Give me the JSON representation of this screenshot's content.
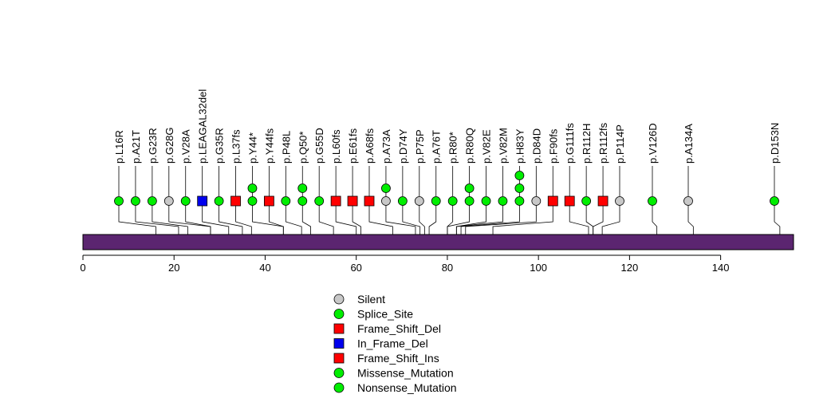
{
  "chart_data": {
    "type": "lollipop",
    "protein_length": 156,
    "x_ticks": [
      0,
      20,
      40,
      60,
      80,
      100,
      120,
      140
    ],
    "x_ticks_text": [
      "0",
      "20",
      "40",
      "60",
      "80",
      "100",
      "120",
      "140"
    ],
    "domain_color": "#5b2570",
    "mutation_types": [
      {
        "name": "Silent",
        "shape": "circle",
        "color": "#c8c8c8"
      },
      {
        "name": "Splice_Site",
        "shape": "circle",
        "color": "#00ee00"
      },
      {
        "name": "Frame_Shift_Del",
        "shape": "square",
        "color": "#ff0000"
      },
      {
        "name": "In_Frame_Del",
        "shape": "square",
        "color": "#0000ee"
      },
      {
        "name": "Frame_Shift_Ins",
        "shape": "square",
        "color": "#ff0000"
      },
      {
        "name": "Missense_Mutation",
        "shape": "circle",
        "color": "#00ee00"
      },
      {
        "name": "Nonsense_Mutation",
        "shape": "circle",
        "color": "#00ee00"
      }
    ],
    "mutations": [
      {
        "label": "p.L16R",
        "pos": 16,
        "type": "Missense_Mutation",
        "count": 1
      },
      {
        "label": "p.A21T",
        "pos": 21,
        "type": "Missense_Mutation",
        "count": 1
      },
      {
        "label": "p.G23R",
        "pos": 23,
        "type": "Missense_Mutation",
        "count": 1
      },
      {
        "label": "p.G28G",
        "pos": 28,
        "type": "Silent",
        "count": 1
      },
      {
        "label": "p.V28A",
        "pos": 28,
        "type": "Missense_Mutation",
        "count": 1
      },
      {
        "label": "p.LEAGAL32del",
        "pos": 32,
        "type": "In_Frame_Del",
        "count": 1
      },
      {
        "label": "p.G35R",
        "pos": 35,
        "type": "Missense_Mutation",
        "count": 1
      },
      {
        "label": "p.L37fs",
        "pos": 37,
        "type": "Frame_Shift_Del",
        "count": 1
      },
      {
        "label": "p.Y44*",
        "pos": 44,
        "type": "Nonsense_Mutation",
        "count": 2
      },
      {
        "label": "p.Y44fs",
        "pos": 44,
        "type": "Frame_Shift_Del",
        "count": 1
      },
      {
        "label": "p.P48L",
        "pos": 48,
        "type": "Missense_Mutation",
        "count": 1
      },
      {
        "label": "p.Q50*",
        "pos": 50,
        "type": "Nonsense_Mutation",
        "count": 2
      },
      {
        "label": "p.G55D",
        "pos": 55,
        "type": "Missense_Mutation",
        "count": 1
      },
      {
        "label": "p.L60fs",
        "pos": 60,
        "type": "Frame_Shift_Del",
        "count": 1
      },
      {
        "label": "p.E61fs",
        "pos": 61,
        "type": "Frame_Shift_Del",
        "count": 1
      },
      {
        "label": "p.A68fs",
        "pos": 68,
        "type": "Frame_Shift_Del",
        "count": 1
      },
      {
        "label": "p.A73A",
        "pos": 73,
        "type": "Silent",
        "count": 1,
        "extra_type": "Missense_Mutation"
      },
      {
        "label": "p.D74Y",
        "pos": 74,
        "type": "Missense_Mutation",
        "count": 1
      },
      {
        "label": "p.P75P",
        "pos": 75,
        "type": "Silent",
        "count": 1
      },
      {
        "label": "p.A76T",
        "pos": 76,
        "type": "Missense_Mutation",
        "count": 1
      },
      {
        "label": "p.R80*",
        "pos": 80,
        "type": "Nonsense_Mutation",
        "count": 1
      },
      {
        "label": "p.R80Q",
        "pos": 80,
        "type": "Missense_Mutation",
        "count": 2
      },
      {
        "label": "p.V82E",
        "pos": 82,
        "type": "Missense_Mutation",
        "count": 1
      },
      {
        "label": "p.V82M",
        "pos": 82,
        "type": "Missense_Mutation",
        "count": 1
      },
      {
        "label": "p.H83Y",
        "pos": 83,
        "type": "Missense_Mutation",
        "count": 3
      },
      {
        "label": "p.D84D",
        "pos": 84,
        "type": "Silent",
        "count": 1
      },
      {
        "label": "p.F90fs",
        "pos": 90,
        "type": "Frame_Shift_Del",
        "count": 1
      },
      {
        "label": "p.G111fs",
        "pos": 111,
        "type": "Frame_Shift_Del",
        "count": 1
      },
      {
        "label": "p.R112H",
        "pos": 112,
        "type": "Missense_Mutation",
        "count": 1
      },
      {
        "label": "p.R112fs",
        "pos": 112,
        "type": "Frame_Shift_Ins",
        "count": 1
      },
      {
        "label": "p.P114P",
        "pos": 114,
        "type": "Silent",
        "count": 1
      },
      {
        "label": "p.V126D",
        "pos": 126,
        "type": "Missense_Mutation",
        "count": 1
      },
      {
        "label": "p.A134A",
        "pos": 134,
        "type": "Silent",
        "count": 1
      },
      {
        "label": "p.D153N",
        "pos": 153,
        "type": "Missense_Mutation",
        "count": 1
      }
    ]
  }
}
